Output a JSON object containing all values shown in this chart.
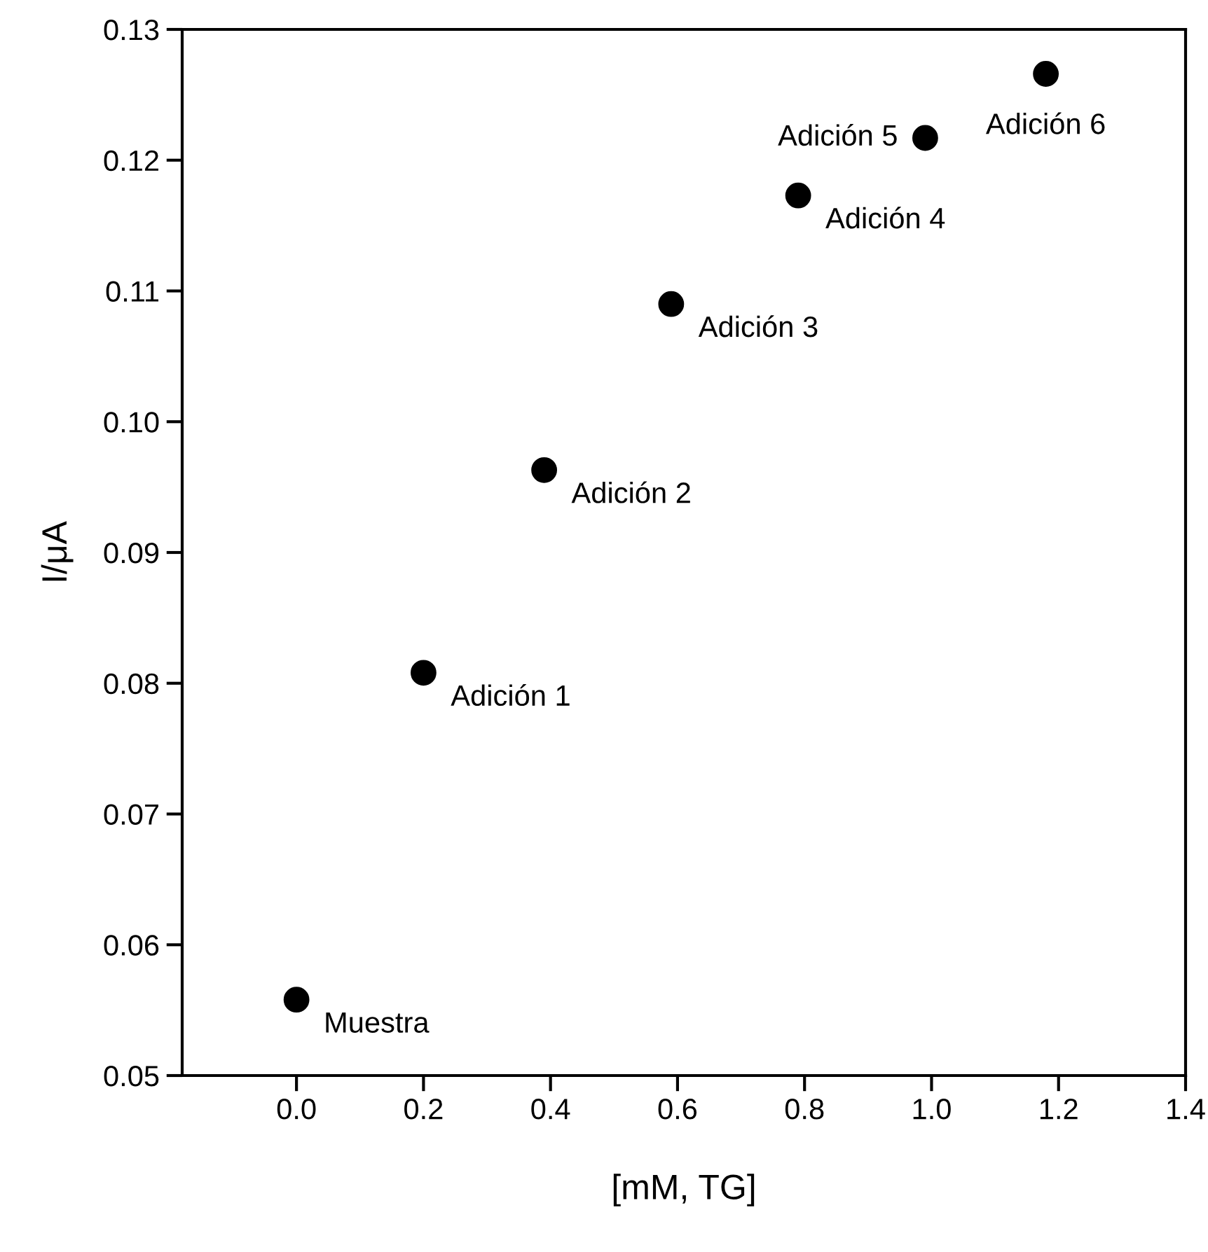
{
  "chart_data": {
    "type": "scatter",
    "xlabel": "[mM, TG]",
    "ylabel": "I/μA",
    "x": [
      0.0,
      0.2,
      0.39,
      0.59,
      0.79,
      0.99,
      1.18
    ],
    "values": [
      0.0558,
      0.0808,
      0.0963,
      0.109,
      0.1173,
      0.1217,
      0.1266
    ],
    "color": "#000000",
    "marker": "circle",
    "grid": false,
    "xlim": [
      -0.18,
      1.4
    ],
    "xticks": [
      {
        "value": 0.0,
        "label": "0.0"
      },
      {
        "value": 0.2,
        "label": "0.2"
      },
      {
        "value": 0.4,
        "label": "0.4"
      },
      {
        "value": 0.6,
        "label": "0.6"
      },
      {
        "value": 0.8,
        "label": "0.8"
      },
      {
        "value": 1.0,
        "label": "1.0"
      },
      {
        "value": 1.2,
        "label": "1.2"
      },
      {
        "value": 1.4,
        "label": "1.4"
      }
    ],
    "ylim": [
      0.05,
      0.13
    ],
    "yticks": [
      0.05,
      0.06,
      0.07,
      0.08,
      0.09,
      {
        "value": 0.1,
        "label": "0.10"
      },
      0.11,
      0.12,
      0.13
    ],
    "annotations": [
      {
        "text": "Muestra",
        "x": 0.0,
        "y": 0.0558
      },
      {
        "text": "Adición 1",
        "x": 0.2,
        "y": 0.0808
      },
      {
        "text": "Adición 2",
        "x": 0.39,
        "y": 0.0963
      },
      {
        "text": "Adición 3",
        "x": 0.59,
        "y": 0.109
      },
      {
        "text": "Adición 4",
        "x": 0.79,
        "y": 0.1173
      },
      {
        "text": "Adición 5",
        "x": 0.99,
        "y": 0.1217
      },
      {
        "text": "Adición 6",
        "x": 1.18,
        "y": 0.1266
      }
    ]
  }
}
